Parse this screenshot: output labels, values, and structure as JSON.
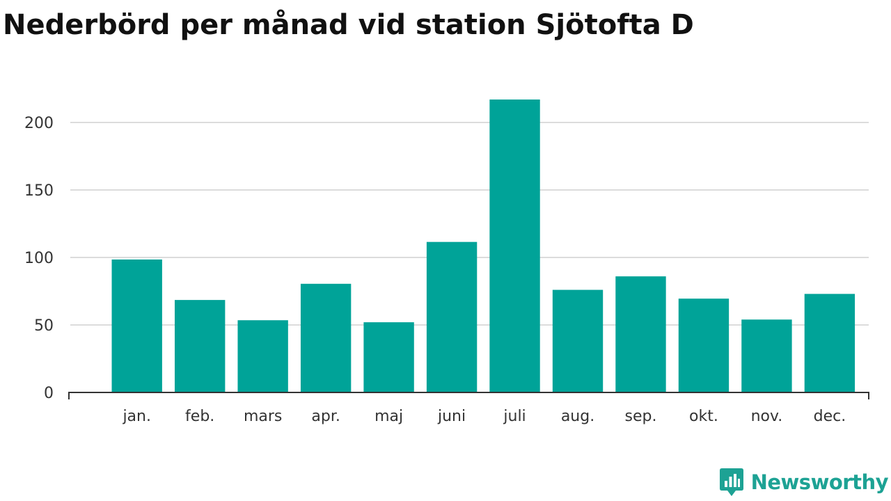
{
  "title": "Nederbörd per månad vid station Sjötofta D",
  "brand": "Newsworthy",
  "colors": {
    "bar": "#00a398",
    "grid": "#dcdcdc",
    "axis": "#333333",
    "brand": "#1da294"
  },
  "chart_data": {
    "type": "bar",
    "title": "Nederbörd per månad vid station Sjötofta D",
    "xlabel": "",
    "ylabel": "",
    "categories": [
      "jan.",
      "feb.",
      "mars",
      "apr.",
      "maj",
      "juni",
      "juli",
      "aug.",
      "sep.",
      "okt.",
      "nov.",
      "dec."
    ],
    "values": [
      98.5,
      68.5,
      53.5,
      80.5,
      52,
      111.5,
      217,
      76,
      86,
      69.5,
      54,
      73
    ],
    "ylim": [
      0,
      225
    ],
    "yticks": [
      0,
      50,
      100,
      150,
      200
    ],
    "grid": true,
    "legend": "none"
  }
}
